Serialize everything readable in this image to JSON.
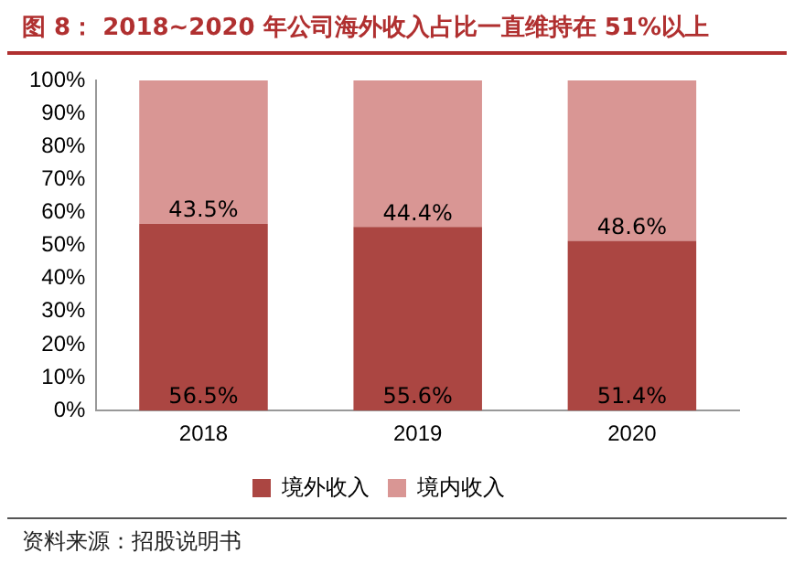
{
  "chart_data": {
    "type": "bar",
    "title": "图 8： 2018~2020 年公司海外收入占比一直维持在 51%以上",
    "categories": [
      "2018",
      "2019",
      "2020"
    ],
    "stacked": true,
    "series": [
      {
        "name": "境外收入",
        "color": "#ab4642",
        "values": [
          56.5,
          55.6,
          51.4
        ],
        "value_labels": [
          "56.5%",
          "55.6%",
          "51.4%"
        ]
      },
      {
        "name": "境内收入",
        "color": "#d99694",
        "values": [
          43.5,
          44.4,
          48.6
        ],
        "value_labels": [
          "43.5%",
          "44.4%",
          "48.6%"
        ]
      }
    ],
    "ylim": [
      0,
      100
    ],
    "yticks": [
      {
        "value": 0,
        "label": "0%"
      },
      {
        "value": 10,
        "label": "10%"
      },
      {
        "value": 20,
        "label": "20%"
      },
      {
        "value": 30,
        "label": "30%"
      },
      {
        "value": 40,
        "label": "40%"
      },
      {
        "value": 50,
        "label": "50%"
      },
      {
        "value": 60,
        "label": "60%"
      },
      {
        "value": 70,
        "label": "70%"
      },
      {
        "value": 80,
        "label": "80%"
      },
      {
        "value": 90,
        "label": "90%"
      },
      {
        "value": 100,
        "label": "100%"
      }
    ],
    "grid": false,
    "legend": "bottom",
    "annotations": [
      "资料来源：招股说明书"
    ]
  }
}
